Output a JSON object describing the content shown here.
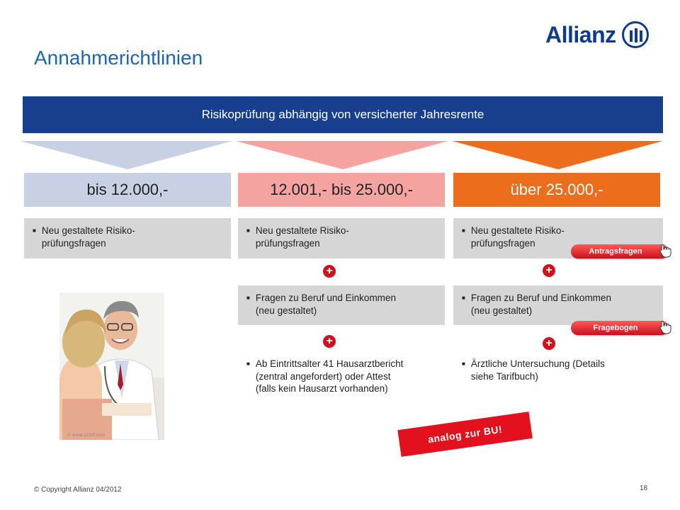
{
  "header": {
    "brand": "Allianz",
    "title": "Annahmerichtlinien"
  },
  "banner": "Risikoprüfung abhängig von versicherter Jahresrente",
  "columns": [
    {
      "label": "bis 12.000,-",
      "color": "#c7d1e3",
      "items": [
        "Neu gestaltete Risiko-\nprüfungsfragen"
      ]
    },
    {
      "label": "12.001,- bis 25.000,-",
      "color": "#f4a3a0",
      "items": [
        "Neu gestaltete Risiko-\nprüfungsfragen",
        "Fragen zu Beruf und Einkommen\n(neu gestaltet)",
        "Ab Eintrittsalter 41 Hausarztbericht\n(zentral angefordert) oder Attest\n(falls kein Hausarzt vorhanden)"
      ]
    },
    {
      "label": "über 25.000,-",
      "color": "#ec6e1d",
      "items": [
        "Neu gestaltete Risiko-\nprüfungsfragen",
        "Fragen zu Beruf und Einkommen\n(neu gestaltet)",
        "Ärztliche Untersuchung (Details\nsiehe Tarifbuch)"
      ]
    }
  ],
  "links": {
    "antragsfragen": "Antragsfragen",
    "fragebogen": "Fragebogen"
  },
  "stamp": "analog zur BU!",
  "photo_credit": "© www.123rf.com",
  "footer": {
    "copyright": "© Copyright Allianz 04/2012",
    "page": "18"
  },
  "icons": {
    "plus": "plus-circle-icon",
    "hand": "hand-pointer-icon"
  }
}
